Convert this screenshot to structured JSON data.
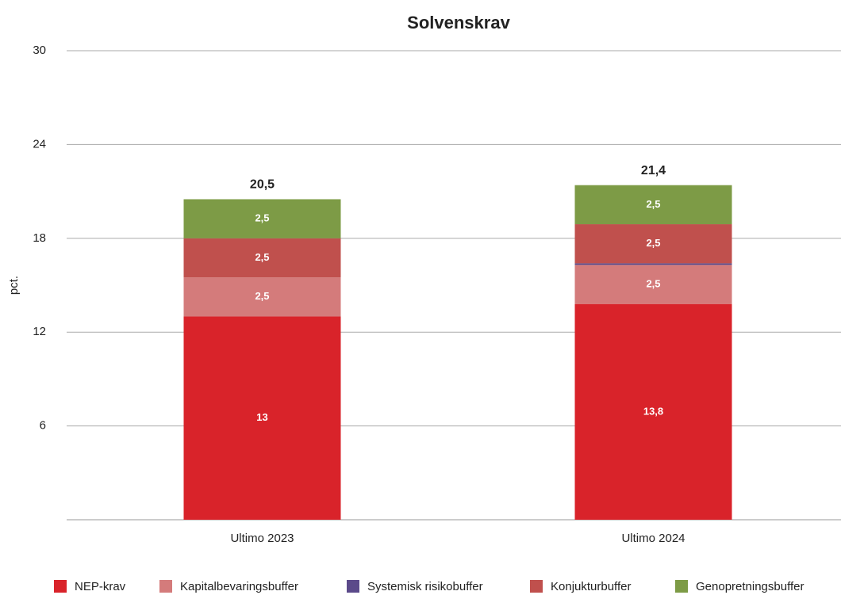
{
  "chart_data": {
    "type": "stacked_bar",
    "title": "Solvenskrav",
    "y_label": "pct.",
    "categories": [
      "Ultimo 2023",
      "Ultimo 2024"
    ],
    "series": [
      {
        "name": "NEP-krav",
        "color": "#d9232a",
        "values": [
          13,
          13.8
        ],
        "value_labels": [
          "13",
          "13,8"
        ]
      },
      {
        "name": "Kapitalbevaringsbuffer",
        "color": "#d47b7b",
        "values": [
          2.5,
          2.5
        ],
        "value_labels": [
          "2,5",
          "2,5"
        ]
      },
      {
        "name": "Systemisk risikobuffer",
        "color": "#5b4a8a",
        "values": [
          0,
          0.1
        ],
        "value_labels": [
          null,
          null
        ]
      },
      {
        "name": "Konjukturbuffer",
        "color": "#c0504d",
        "values": [
          2.5,
          2.5
        ],
        "value_labels": [
          "2,5",
          "2,5"
        ]
      },
      {
        "name": "Genopretningsbuffer",
        "color": "#7d9b46",
        "values": [
          2.5,
          2.5
        ],
        "value_labels": [
          "2,5",
          "2,5"
        ]
      }
    ],
    "totals": [
      20.5,
      21.4
    ],
    "total_labels": [
      "20,5",
      "21,4"
    ],
    "ylim": [
      0,
      30
    ],
    "yticks": [
      6,
      12,
      18,
      24,
      30
    ],
    "grid": true,
    "legend": "bottom"
  }
}
